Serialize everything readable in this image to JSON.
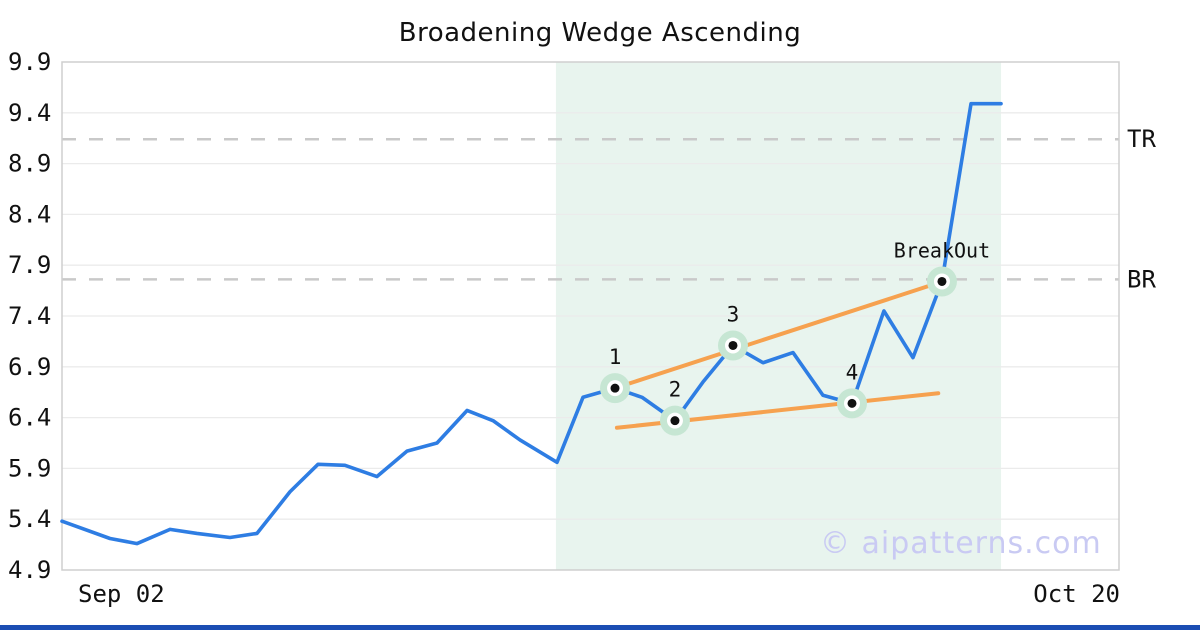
{
  "title": "Broadening Wedge Ascending",
  "watermark": "© aipatterns.com",
  "colors": {
    "price_line": "#2e7de3",
    "trendline": "#f6a14f",
    "zone_fill": "#e8f4ee",
    "marker_halo": "#c6e6d3",
    "marker_ring": "#ffffff",
    "marker_dot": "#111111",
    "grid": "#ebebeb",
    "plot_border": "#cfcfcf",
    "dashed_line": "#c9c9c9",
    "text": "#111111",
    "watermark": "#c9caf3",
    "bottom_bar": "#1b4db3"
  },
  "chart_data": {
    "type": "line",
    "title": "Broadening Wedge Ascending",
    "xlabel": "",
    "ylabel": "",
    "x_axis": {
      "labels": [
        "Sep 02",
        "Oct 20"
      ]
    },
    "y_axis": {
      "min": 4.9,
      "max": 9.9,
      "ticks": [
        9.9,
        9.4,
        8.9,
        8.4,
        7.9,
        7.4,
        6.9,
        6.4,
        5.9,
        5.4,
        4.9
      ]
    },
    "grid": "horizontal",
    "zone": {
      "x0": 0.4673,
      "x1": 0.8884
    },
    "series": [
      {
        "name": "price",
        "points": [
          [
            0.0,
            5.38
          ],
          [
            0.0454,
            5.21
          ],
          [
            0.071,
            5.16
          ],
          [
            0.1022,
            5.3
          ],
          [
            0.1277,
            5.26
          ],
          [
            0.1589,
            5.22
          ],
          [
            0.1845,
            5.26
          ],
          [
            0.2157,
            5.67
          ],
          [
            0.2422,
            5.94
          ],
          [
            0.2677,
            5.93
          ],
          [
            0.298,
            5.82
          ],
          [
            0.3264,
            6.07
          ],
          [
            0.3548,
            6.15
          ],
          [
            0.3832,
            6.47
          ],
          [
            0.4078,
            6.37
          ],
          [
            0.4333,
            6.18
          ],
          [
            0.4683,
            5.96
          ],
          [
            0.4929,
            6.6
          ],
          [
            0.5232,
            6.69
          ],
          [
            0.5487,
            6.6
          ],
          [
            0.5799,
            6.37
          ],
          [
            0.6064,
            6.75
          ],
          [
            0.6348,
            7.11
          ],
          [
            0.6632,
            6.94
          ],
          [
            0.6916,
            7.04
          ],
          [
            0.7199,
            6.62
          ],
          [
            0.7474,
            6.54
          ],
          [
            0.7776,
            7.45
          ],
          [
            0.8051,
            6.99
          ],
          [
            0.8325,
            7.74
          ],
          [
            0.86,
            9.49
          ],
          [
            0.8884,
            9.49
          ]
        ]
      }
    ],
    "trendlines": [
      {
        "name": "upper",
        "from": [
          0.5232,
          6.69
        ],
        "to": [
          0.842,
          7.77
        ]
      },
      {
        "name": "lower",
        "from": [
          0.525,
          6.3
        ],
        "to": [
          0.829,
          6.64
        ]
      }
    ],
    "hlines": [
      {
        "label": "TR",
        "value": 9.14
      },
      {
        "label": "BR",
        "value": 7.76
      }
    ],
    "markers": [
      {
        "label": "1",
        "x": 0.5232,
        "v": 6.69
      },
      {
        "label": "2",
        "x": 0.5799,
        "v": 6.37
      },
      {
        "label": "3",
        "x": 0.6348,
        "v": 7.11
      },
      {
        "label": "4",
        "x": 0.7474,
        "v": 6.54
      },
      {
        "label": "BreakOut",
        "x": 0.8325,
        "v": 7.74
      }
    ]
  }
}
